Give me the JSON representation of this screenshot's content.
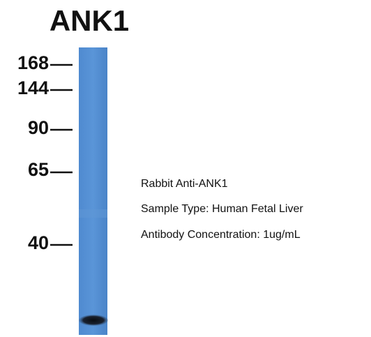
{
  "title": "ANK1",
  "markers": [
    "168",
    "144",
    "90",
    "65",
    "40"
  ],
  "annotations": [
    "Rabbit Anti-ANK1",
    "Sample Type: Human Fetal Liver",
    "Antibody Concentration: 1ug/mL"
  ]
}
